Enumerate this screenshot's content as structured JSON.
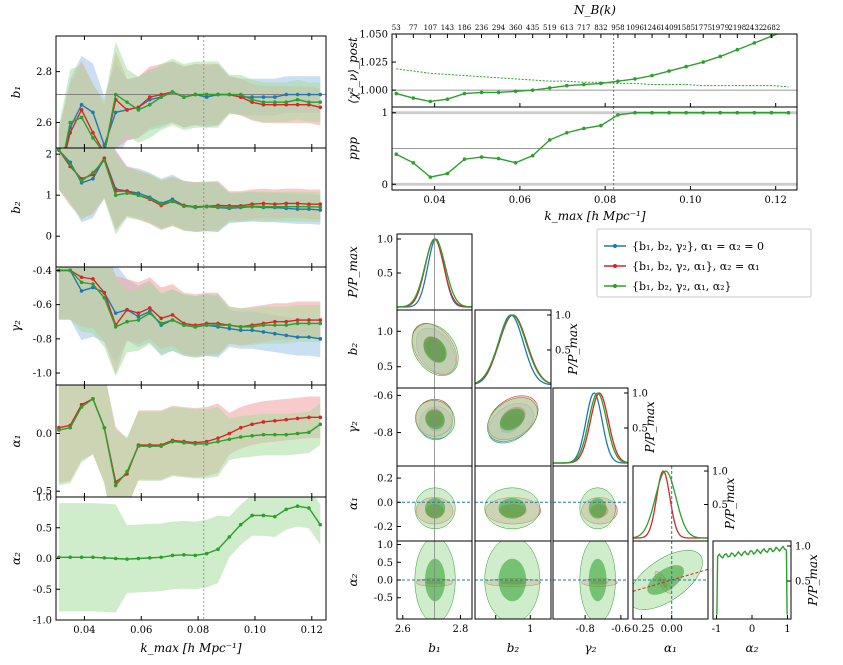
{
  "chart_data": {
    "type": "multi-panel",
    "colors": {
      "blue": "#1f77b4",
      "red": "#d62728",
      "green": "#2ca02c",
      "bandBlue": "#9ec5e6",
      "bandRed": "#f2a0a0",
      "bandGreen": "#a8dca0",
      "kmax_line": "#888888"
    },
    "kmax_marker": 0.082,
    "xaxis": {
      "label": "k_max [h Mpc⁻¹]",
      "ticks": [
        "0.04",
        "0.06",
        "0.08",
        "0.10",
        "0.12"
      ],
      "tickvals": [
        0.04,
        0.06,
        0.08,
        0.1,
        0.12
      ],
      "range": [
        0.03,
        0.125
      ]
    },
    "k": [
      0.031,
      0.035,
      0.039,
      0.043,
      0.047,
      0.051,
      0.055,
      0.059,
      0.063,
      0.067,
      0.071,
      0.075,
      0.079,
      0.083,
      0.087,
      0.091,
      0.095,
      0.099,
      0.103,
      0.107,
      0.111,
      0.115,
      0.119,
      0.123
    ],
    "left_panels": [
      {
        "ylabel": "b₁",
        "yticks": [
          "2.6",
          "2.8"
        ],
        "ytickvals": [
          2.6,
          2.8
        ],
        "ylim": [
          2.5,
          2.94
        ],
        "ref": 2.71,
        "series": [
          {
            "name": "blue",
            "values": [
              2.38,
              2.58,
              2.67,
              2.64,
              2.51,
              2.64,
              2.65,
              2.66,
              2.69,
              2.7,
              2.72,
              2.7,
              2.71,
              2.7,
              2.71,
              2.71,
              2.7,
              2.7,
              2.7,
              2.7,
              2.71,
              2.71,
              2.71,
              2.71
            ],
            "band": 0.12
          },
          {
            "name": "red",
            "values": [
              2.38,
              2.56,
              2.65,
              2.56,
              2.48,
              2.69,
              2.65,
              2.66,
              2.7,
              2.71,
              2.72,
              2.7,
              2.71,
              2.71,
              2.71,
              2.71,
              2.7,
              2.68,
              2.67,
              2.67,
              2.67,
              2.67,
              2.67,
              2.66
            ],
            "band": 0.12
          },
          {
            "name": "green",
            "values": [
              2.38,
              2.6,
              2.62,
              2.54,
              2.48,
              2.71,
              2.68,
              2.65,
              2.67,
              2.7,
              2.72,
              2.7,
              2.71,
              2.71,
              2.71,
              2.71,
              2.71,
              2.69,
              2.68,
              2.68,
              2.68,
              2.69,
              2.68,
              2.68
            ],
            "band": 0.13
          }
        ]
      },
      {
        "ylabel": "b₂",
        "yticks": [
          "0",
          "1",
          "2"
        ],
        "ytickvals": [
          0,
          1,
          2
        ],
        "ylim": [
          -0.75,
          2.15
        ],
        "ref": null,
        "series": [
          {
            "name": "blue",
            "values": [
              2.1,
              1.8,
              1.3,
              1.4,
              1.9,
              1.15,
              1.1,
              1.05,
              0.95,
              0.8,
              0.9,
              0.75,
              0.7,
              0.72,
              0.7,
              0.68,
              0.7,
              0.72,
              0.7,
              0.7,
              0.68,
              0.66,
              0.66,
              0.64
            ],
            "band": 0.6
          },
          {
            "name": "red",
            "values": [
              2.1,
              1.7,
              1.4,
              1.5,
              1.9,
              1.1,
              1.1,
              1.0,
              0.9,
              0.75,
              0.85,
              0.75,
              0.72,
              0.73,
              0.75,
              0.74,
              0.74,
              0.78,
              0.8,
              0.78,
              0.8,
              0.8,
              0.78,
              0.78
            ],
            "band": 0.6
          },
          {
            "name": "green",
            "values": [
              2.1,
              1.75,
              1.35,
              1.55,
              1.85,
              1.0,
              1.05,
              1.0,
              0.92,
              0.78,
              0.85,
              0.73,
              0.71,
              0.72,
              0.71,
              0.7,
              0.71,
              0.73,
              0.72,
              0.72,
              0.72,
              0.72,
              0.72,
              0.71
            ],
            "band": 0.6
          }
        ]
      },
      {
        "ylabel": "γ₂",
        "yticks": [
          "-1.0",
          "-0.8",
          "-0.6",
          "-0.4"
        ],
        "ytickvals": [
          -1.0,
          -0.8,
          -0.6,
          -0.4
        ],
        "ylim": [
          -1.07,
          -0.38
        ],
        "ref": null,
        "series": [
          {
            "name": "blue",
            "values": [
              -0.4,
              -0.4,
              -0.52,
              -0.5,
              -0.53,
              -0.65,
              -0.63,
              -0.67,
              -0.64,
              -0.72,
              -0.69,
              -0.72,
              -0.73,
              -0.72,
              -0.73,
              -0.74,
              -0.75,
              -0.75,
              -0.76,
              -0.77,
              -0.78,
              -0.79,
              -0.79,
              -0.8
            ],
            "band": 0.18
          },
          {
            "name": "red",
            "values": [
              -0.4,
              -0.4,
              -0.44,
              -0.45,
              -0.53,
              -0.72,
              -0.63,
              -0.65,
              -0.62,
              -0.68,
              -0.66,
              -0.71,
              -0.72,
              -0.71,
              -0.71,
              -0.72,
              -0.73,
              -0.72,
              -0.71,
              -0.7,
              -0.7,
              -0.69,
              -0.69,
              -0.69
            ],
            "band": 0.18
          },
          {
            "name": "green",
            "values": [
              -0.4,
              -0.4,
              -0.47,
              -0.48,
              -0.56,
              -0.73,
              -0.7,
              -0.69,
              -0.65,
              -0.71,
              -0.69,
              -0.72,
              -0.73,
              -0.72,
              -0.72,
              -0.72,
              -0.73,
              -0.73,
              -0.72,
              -0.72,
              -0.72,
              -0.71,
              -0.71,
              -0.71
            ],
            "band": 0.18
          }
        ]
      },
      {
        "ylabel": "α₁",
        "yticks": [
          "-0.5",
          "0.0"
        ],
        "ytickvals": [
          -0.5,
          0.0
        ],
        "ylim": [
          -0.55,
          0.42
        ],
        "ref": null,
        "series": [
          {
            "name": "red",
            "values": [
              0.05,
              0.07,
              0.25,
              0.3,
              0.05,
              -0.42,
              -0.35,
              -0.1,
              -0.1,
              -0.1,
              -0.06,
              -0.07,
              -0.08,
              -0.07,
              -0.04,
              0.0,
              0.05,
              0.08,
              0.1,
              0.11,
              0.12,
              0.13,
              0.14,
              0.14
            ],
            "band": 0.3
          },
          {
            "name": "green",
            "values": [
              0.03,
              0.05,
              0.23,
              0.3,
              0.05,
              -0.45,
              -0.33,
              -0.11,
              -0.11,
              -0.11,
              -0.07,
              -0.08,
              -0.09,
              -0.09,
              -0.07,
              -0.05,
              -0.03,
              -0.02,
              -0.01,
              -0.01,
              -0.01,
              0.0,
              0.01,
              0.08
            ],
            "band": 0.3
          }
        ]
      },
      {
        "ylabel": "α₂",
        "yticks": [
          "-1.0",
          "-0.5",
          "0.0",
          "0.5",
          "1.0"
        ],
        "ytickvals": [
          -1.0,
          -0.5,
          0.0,
          0.5,
          1.0
        ],
        "ylim": [
          -1.0,
          1.0
        ],
        "ref": null,
        "series": [
          {
            "name": "green",
            "values": [
              0.02,
              0.02,
              0.02,
              0.02,
              0.01,
              0.0,
              -0.01,
              0.0,
              0.01,
              0.02,
              0.05,
              0.06,
              0.05,
              0.08,
              0.15,
              0.35,
              0.55,
              0.7,
              0.7,
              0.68,
              0.8,
              0.85,
              0.82,
              0.55
            ],
            "band": 0.55
          }
        ]
      }
    ],
    "chi2_panel": {
      "ylabel": "⟨χ²_ν⟩_post",
      "yticks": [
        "1.000",
        "1.025",
        "1.050"
      ],
      "ytickvals": [
        1.0,
        1.025,
        1.05
      ],
      "ylim": [
        0.985,
        1.05
      ],
      "ref": 1.0,
      "values": [
        0.997,
        0.993,
        0.99,
        0.992,
        0.997,
        0.998,
        0.998,
        0.999,
        1.0,
        1.002,
        1.004,
        1.005,
        1.006,
        1.008,
        1.01,
        1.013,
        1.017,
        1.021,
        1.025,
        1.03,
        1.036,
        1.042,
        1.048,
        1.054
      ],
      "dashed": [
        1.019,
        1.017,
        1.015,
        1.014,
        1.013,
        1.012,
        1.011,
        1.01,
        1.009,
        1.008,
        1.008,
        1.007,
        1.007,
        1.006,
        1.006,
        1.005,
        1.005,
        1.005,
        1.004,
        1.004,
        1.004,
        1.004,
        1.004,
        1.003
      ]
    },
    "ppp_panel": {
      "ylabel": "ppp",
      "yticks": [
        "0",
        "1"
      ],
      "ytickvals": [
        0,
        1
      ],
      "ylim": [
        -0.08,
        1.08
      ],
      "ref": 0.5,
      "values": [
        0.42,
        0.3,
        0.1,
        0.15,
        0.35,
        0.38,
        0.36,
        0.3,
        0.4,
        0.62,
        0.72,
        0.78,
        0.82,
        0.97,
        1.0,
        1.0,
        1.0,
        1.0,
        1.0,
        1.0,
        1.0,
        1.0,
        1.0,
        1.0
      ]
    },
    "top_axis": {
      "label": "N_B(k)",
      "ticks": [
        "53",
        "77",
        "107",
        "143",
        "186",
        "236",
        "294",
        "360",
        "435",
        "519",
        "613",
        "717",
        "832",
        "958",
        "1096",
        "1246",
        "1409",
        "1585",
        "1775",
        "1979",
        "2198",
        "2432",
        "2682"
      ]
    },
    "legend": [
      {
        "color": "blue",
        "label": "{b₁, b₂, γ₂}, α₁ = α₂ = 0"
      },
      {
        "color": "red",
        "label": "{b₁, b₂, γ₂, α₁}, α₂ = α₁"
      },
      {
        "color": "green",
        "label": "{b₁, b₂, γ₂, α₁, α₂}"
      }
    ],
    "corner": {
      "params": [
        "b₁",
        "b₂",
        "γ₂",
        "α₁",
        "α₂"
      ],
      "ranges": [
        [
          2.58,
          2.84
        ],
        [
          0.2,
          1.3
        ],
        [
          -0.98,
          -0.56
        ],
        [
          -0.32,
          0.3
        ],
        [
          -1.1,
          1.1
        ]
      ],
      "xticks": [
        [
          "2.6",
          "2.8"
        ],
        [
          "",
          "1"
        ],
        [
          "-0.8",
          "-0.6"
        ],
        [
          "-0.25",
          "0.00"
        ],
        [
          "-1",
          "0",
          "1"
        ]
      ],
      "xtickvals": [
        [
          2.6,
          2.8
        ],
        [
          0.5,
          1.0
        ],
        [
          -0.8,
          -0.6
        ],
        [
          -0.25,
          0.0
        ],
        [
          -1,
          0,
          1
        ]
      ],
      "yticks": [
        [],
        [
          "0.0",
          "0.5",
          "1.0"
        ],
        [
          "-0.8",
          "-0.6"
        ],
        [
          "-0.2",
          "0.0",
          "0.2"
        ],
        [
          "-0.5",
          "0.0",
          "0.5",
          "1.0"
        ]
      ],
      "ytickvals": [
        [],
        [
          0,
          0.5,
          1.0
        ],
        [
          -0.8,
          -0.6
        ],
        [
          -0.2,
          0.0,
          0.2
        ],
        [
          -0.5,
          0.0,
          0.5,
          1.0
        ]
      ],
      "pmax_label": "P/P_max",
      "pmax_ticks": [
        "0.5",
        "1.0"
      ],
      "truth": [
        2.71,
        null,
        null,
        0.0,
        0.0
      ],
      "means": {
        "blue": [
          2.715,
          0.72,
          -0.75,
          0.0,
          0.0
        ],
        "red": [
          2.71,
          0.75,
          -0.72,
          -0.07,
          -0.07
        ],
        "green": [
          2.712,
          0.74,
          -0.73,
          -0.05,
          0.0
        ]
      },
      "sigmas": {
        "blue": [
          0.028,
          0.18,
          0.045,
          0.0,
          0.0
        ],
        "red": [
          0.032,
          0.2,
          0.05,
          0.055,
          0.055
        ],
        "green": [
          0.035,
          0.2,
          0.05,
          0.085,
          0.6
        ]
      }
    }
  }
}
